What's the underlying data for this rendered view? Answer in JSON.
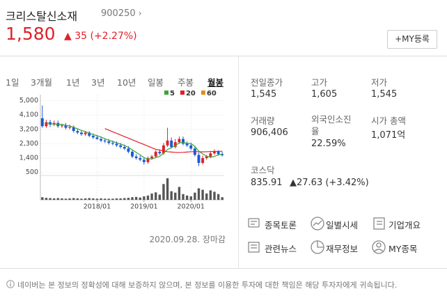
{
  "header": {
    "name": "크리스탈신소재",
    "code": "900250",
    "price": "1,580",
    "change": "▲ 35 (+2.27%)",
    "my_button": "+MY등록"
  },
  "periods": [
    "1일",
    "3개월",
    "1년",
    "3년",
    "10년",
    "일봉",
    "주봉",
    "월봉"
  ],
  "active_period": 7,
  "chart_data": {
    "type": "candlestick",
    "categories": [
      null,
      null,
      null,
      null,
      null,
      null,
      null,
      null,
      null,
      null,
      null,
      null,
      null,
      null,
      "2018/01",
      null,
      null,
      null,
      null,
      null,
      null,
      null,
      null,
      null,
      null,
      null,
      "2019/01",
      null,
      null,
      null,
      null,
      null,
      null,
      null,
      null,
      null,
      null,
      null,
      "2020/01",
      null,
      null,
      null,
      null,
      null,
      null,
      null,
      null
    ],
    "open": [
      3900,
      3400,
      3650,
      3500,
      3600,
      3400,
      3450,
      3300,
      3350,
      3100,
      3000,
      2900,
      3000,
      2800,
      2700,
      2600,
      2500,
      2450,
      2350,
      2300,
      2200,
      2100,
      2000,
      1800,
      1500,
      1400,
      1300,
      1150,
      1400,
      1500,
      1800,
      1700,
      2200,
      2500,
      2100,
      2400,
      2600,
      2300,
      2200,
      2000,
      1600,
      1100,
      1400,
      1500,
      1700,
      1800,
      1650
    ],
    "high": [
      4700,
      3800,
      3800,
      3750,
      3750,
      3550,
      3600,
      3500,
      3450,
      3250,
      3150,
      3100,
      3100,
      2950,
      2850,
      2750,
      2650,
      2600,
      2500,
      2450,
      2350,
      2250,
      2150,
      1950,
      1650,
      1550,
      1450,
      1500,
      1600,
      1900,
      1950,
      2350,
      3300,
      2700,
      2600,
      2750,
      2750,
      2450,
      2350,
      2150,
      1750,
      1550,
      1600,
      1850,
      1950,
      1900,
      1800
    ],
    "low": [
      3300,
      3300,
      3350,
      3400,
      3300,
      3300,
      3200,
      3200,
      3000,
      2900,
      2800,
      2800,
      2700,
      2600,
      2550,
      2400,
      2350,
      2250,
      2200,
      2100,
      2000,
      1900,
      1700,
      1400,
      1300,
      1200,
      1000,
      1050,
      1300,
      1400,
      1600,
      1600,
      2100,
      2000,
      2000,
      2300,
      2200,
      2100,
      1900,
      1500,
      900,
      1000,
      1300,
      1400,
      1600,
      1550,
      1500
    ],
    "close": [
      3400,
      3650,
      3500,
      3600,
      3400,
      3450,
      3300,
      3350,
      3100,
      3000,
      2900,
      3000,
      2800,
      2700,
      2600,
      2500,
      2450,
      2350,
      2300,
      2200,
      2100,
      2000,
      1800,
      1500,
      1400,
      1300,
      1150,
      1400,
      1500,
      1800,
      1700,
      2200,
      2500,
      2100,
      2400,
      2600,
      2300,
      2200,
      2000,
      1600,
      1100,
      1400,
      1500,
      1700,
      1800,
      1650,
      1580
    ],
    "up_color": "#e0202a",
    "down_color": "#1c5ad6",
    "series": [
      {
        "name": "5",
        "color": "#3aa635",
        "values": [
          null,
          3640,
          3540,
          3540,
          3520,
          3520,
          3450,
          3420,
          3320,
          3240,
          3130,
          3070,
          2960,
          2880,
          2800,
          2720,
          2610,
          2520,
          2440,
          2360,
          2280,
          2190,
          2080,
          1920,
          1760,
          1600,
          1430,
          1350,
          1350,
          1430,
          1510,
          1720,
          1940,
          2060,
          2180,
          2360,
          2380,
          2320,
          2320,
          2140,
          1840,
          1660,
          1520,
          1460,
          1500,
          1610,
          1650
        ]
      },
      {
        "name": "20",
        "color": "#e0202a",
        "values": [
          null,
          null,
          null,
          null,
          null,
          null,
          null,
          null,
          null,
          null,
          null,
          null,
          null,
          null,
          null,
          null,
          3250,
          3150,
          3050,
          2950,
          2850,
          2750,
          2650,
          2550,
          2450,
          2350,
          2250,
          2150,
          2050,
          1950,
          1900,
          1850,
          1800,
          1780,
          1760,
          1750,
          1760,
          1780,
          1800,
          1810,
          1800,
          1790,
          1800,
          1810,
          1820,
          1820,
          1830
        ]
      },
      {
        "name": "60",
        "color": "#e8891c",
        "values": [
          null,
          null,
          null,
          null,
          null,
          null,
          null,
          null,
          null,
          null,
          null,
          null,
          null,
          null,
          null,
          null,
          null,
          null,
          null,
          null,
          null,
          null,
          null,
          null,
          null,
          null,
          null,
          null,
          null,
          null,
          null,
          null,
          null,
          null,
          null,
          null,
          null,
          null,
          null,
          null,
          null,
          null,
          null,
          null,
          null,
          null,
          null
        ]
      }
    ],
    "ylim": [
      400,
      5200
    ],
    "yticks": [
      500,
      {
        "value": 1400,
        "label": "1,400"
      },
      {
        "value": 2300,
        "label": "2,300"
      },
      {
        "value": 3200,
        "label": "3,200"
      },
      {
        "value": 4100,
        "label": "4,100"
      },
      {
        "value": 5000,
        "label": "5,000"
      }
    ],
    "volume": {
      "color": "#555555",
      "ylim": [
        0,
        8000000
      ],
      "values": [
        900000,
        700000,
        600000,
        500000,
        600000,
        500000,
        400000,
        500000,
        600000,
        500000,
        400000,
        500000,
        600000,
        500000,
        400000,
        500000,
        400000,
        400000,
        400000,
        500000,
        500000,
        600000,
        700000,
        900000,
        1000000,
        800000,
        1200000,
        1500000,
        2200000,
        2600000,
        1800000,
        5500000,
        7500000,
        3000000,
        2500000,
        4500000,
        2000000,
        1500000,
        1200000,
        2500000,
        4000000,
        3500000,
        2200000,
        3300000,
        2800000,
        2000000,
        900000
      ]
    },
    "grid": true
  },
  "date_note": "2020.09.28. 장마감",
  "stats": [
    {
      "label": "전일종가",
      "value": "1,545"
    },
    {
      "label": "고가",
      "value": "1,605"
    },
    {
      "label": "저가",
      "value": "1,545"
    },
    {
      "label": "거래량",
      "value": "906,406"
    },
    {
      "label": "외국인소진율",
      "value": "22.59%"
    },
    {
      "label": "시가 총액",
      "value": "1,071억"
    }
  ],
  "index": {
    "label": "코스닥",
    "value": "835.91",
    "change": "▲27.63 (+3.42%)"
  },
  "links": [
    "종목토론",
    "일별시세",
    "기업개요",
    "관련뉴스",
    "재무정보",
    "MY종목"
  ],
  "footer": "네이버는 본 정보의 정확성에 대해 보증하지 않으며, 본 정보를 이용한 투자에 대한 책임은 해당 투자자에게 귀속됩니다."
}
